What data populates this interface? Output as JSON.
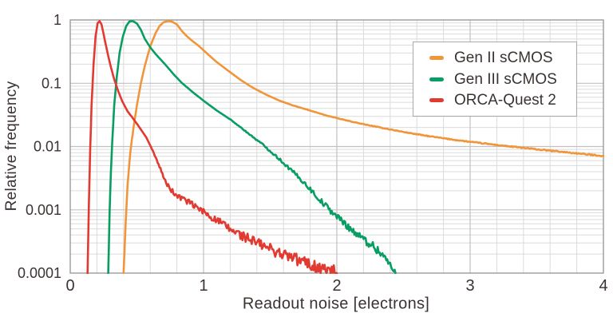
{
  "colors": {
    "background": "#ffffff",
    "text": "#3a3332",
    "grid_minor": "#dbdbdb",
    "grid_major": "#c0c0c0",
    "plot_border": "#9b9b9b",
    "legend_border": "#a9a9a9",
    "series_orange": "#f0963a",
    "series_green": "#089d63",
    "series_red": "#e13a31"
  },
  "chart_data": {
    "type": "line",
    "title": "",
    "xlabel": "Readout noise [electrons]",
    "ylabel": "Relative frequency",
    "grid": true,
    "legend_position": "top-right",
    "x_axis": {
      "min": 0,
      "max": 4,
      "minor_step": 0.2,
      "major_ticks": [
        1,
        2,
        3
      ],
      "tick_values": [
        0,
        1,
        2,
        3,
        4
      ],
      "tick_labels": [
        "0",
        "1",
        "2",
        "3",
        "4"
      ]
    },
    "y_axis": {
      "scale": "log",
      "min": 0.0001,
      "max": 1,
      "tick_values": [
        1,
        0.1,
        0.01,
        0.001,
        0.0001
      ],
      "tick_labels": [
        "1",
        "0.1",
        "0.01",
        "0.001",
        "0.0001"
      ]
    },
    "series": [
      {
        "name": "Gen II sCMOS",
        "color": "#f0963a",
        "noise": {
          "start": 0.06,
          "max": 0.03
        },
        "points": [
          [
            0.4,
            0.0001
          ],
          [
            0.415,
            0.0006
          ],
          [
            0.43,
            0.0025
          ],
          [
            0.45,
            0.008
          ],
          [
            0.475,
            0.02
          ],
          [
            0.5,
            0.045
          ],
          [
            0.53,
            0.1
          ],
          [
            0.56,
            0.19
          ],
          [
            0.6,
            0.38
          ],
          [
            0.64,
            0.62
          ],
          [
            0.67,
            0.8
          ],
          [
            0.7,
            0.92
          ],
          [
            0.73,
            0.96
          ],
          [
            0.76,
            0.95
          ],
          [
            0.8,
            0.85
          ],
          [
            0.84,
            0.66
          ],
          [
            0.88,
            0.54
          ],
          [
            0.92,
            0.46
          ],
          [
            0.97,
            0.38
          ],
          [
            1.03,
            0.29
          ],
          [
            1.1,
            0.215
          ],
          [
            1.19,
            0.155
          ],
          [
            1.28,
            0.112
          ],
          [
            1.37,
            0.085
          ],
          [
            1.47,
            0.066
          ],
          [
            1.57,
            0.053
          ],
          [
            1.68,
            0.044
          ],
          [
            1.8,
            0.037
          ],
          [
            1.92,
            0.031
          ],
          [
            2.05,
            0.0265
          ],
          [
            2.2,
            0.0225
          ],
          [
            2.35,
            0.0195
          ],
          [
            2.5,
            0.017
          ],
          [
            2.65,
            0.015
          ],
          [
            2.8,
            0.0135
          ],
          [
            2.95,
            0.0122
          ],
          [
            3.1,
            0.0112
          ],
          [
            3.25,
            0.0103
          ],
          [
            3.4,
            0.0095
          ],
          [
            3.55,
            0.0088
          ],
          [
            3.7,
            0.0082
          ],
          [
            3.85,
            0.0076
          ],
          [
            4.0,
            0.0071
          ]
        ]
      },
      {
        "name": "Gen III sCMOS",
        "color": "#089d63",
        "noise": {
          "start": 0.03,
          "max": 0.08
        },
        "points": [
          [
            0.285,
            0.0001
          ],
          [
            0.295,
            0.0008
          ],
          [
            0.305,
            0.004
          ],
          [
            0.315,
            0.012
          ],
          [
            0.33,
            0.045
          ],
          [
            0.35,
            0.13
          ],
          [
            0.37,
            0.3
          ],
          [
            0.395,
            0.55
          ],
          [
            0.42,
            0.8
          ],
          [
            0.445,
            0.95
          ],
          [
            0.47,
            0.96
          ],
          [
            0.5,
            0.88
          ],
          [
            0.53,
            0.7
          ],
          [
            0.56,
            0.5
          ],
          [
            0.6,
            0.37
          ],
          [
            0.64,
            0.29
          ],
          [
            0.68,
            0.235
          ],
          [
            0.72,
            0.19
          ],
          [
            0.78,
            0.135
          ],
          [
            0.84,
            0.1
          ],
          [
            0.92,
            0.072
          ],
          [
            1.0,
            0.053
          ],
          [
            1.1,
            0.037
          ],
          [
            1.21,
            0.026
          ],
          [
            1.33,
            0.0165
          ],
          [
            1.45,
            0.0105
          ],
          [
            1.56,
            0.0066
          ],
          [
            1.67,
            0.004
          ],
          [
            1.77,
            0.0025
          ],
          [
            1.87,
            0.00145
          ],
          [
            1.97,
            0.0009
          ],
          [
            2.07,
            0.00058
          ],
          [
            2.17,
            0.00038
          ],
          [
            2.27,
            0.00027
          ],
          [
            2.35,
            0.00019
          ],
          [
            2.4,
            0.00013
          ],
          [
            2.44,
            0.0001
          ]
        ]
      },
      {
        "name": "ORCA-Quest 2",
        "color": "#e13a31",
        "noise": {
          "start": 0.01,
          "max": 0.11
        },
        "points": [
          [
            0.13,
            0.0001
          ],
          [
            0.14,
            0.0012
          ],
          [
            0.15,
            0.009
          ],
          [
            0.16,
            0.045
          ],
          [
            0.175,
            0.2
          ],
          [
            0.19,
            0.55
          ],
          [
            0.205,
            0.88
          ],
          [
            0.22,
            0.96
          ],
          [
            0.235,
            0.85
          ],
          [
            0.25,
            0.6
          ],
          [
            0.265,
            0.42
          ],
          [
            0.285,
            0.27
          ],
          [
            0.305,
            0.18
          ],
          [
            0.33,
            0.115
          ],
          [
            0.36,
            0.075
          ],
          [
            0.39,
            0.052
          ],
          [
            0.43,
            0.036
          ],
          [
            0.47,
            0.028
          ],
          [
            0.52,
            0.02
          ],
          [
            0.57,
            0.014
          ],
          [
            0.62,
            0.0085
          ],
          [
            0.67,
            0.0048
          ],
          [
            0.72,
            0.0026
          ],
          [
            0.79,
            0.0017
          ],
          [
            0.86,
            0.00145
          ],
          [
            0.93,
            0.00115
          ],
          [
            1.0,
            0.00093
          ],
          [
            1.1,
            0.00068
          ],
          [
            1.2,
            0.00049
          ],
          [
            1.3,
            0.00038
          ],
          [
            1.4,
            0.0003
          ],
          [
            1.5,
            0.00024
          ],
          [
            1.62,
            0.00019
          ],
          [
            1.75,
            0.00015
          ],
          [
            1.87,
            0.00012
          ],
          [
            2.0,
            0.0001
          ]
        ]
      }
    ]
  }
}
